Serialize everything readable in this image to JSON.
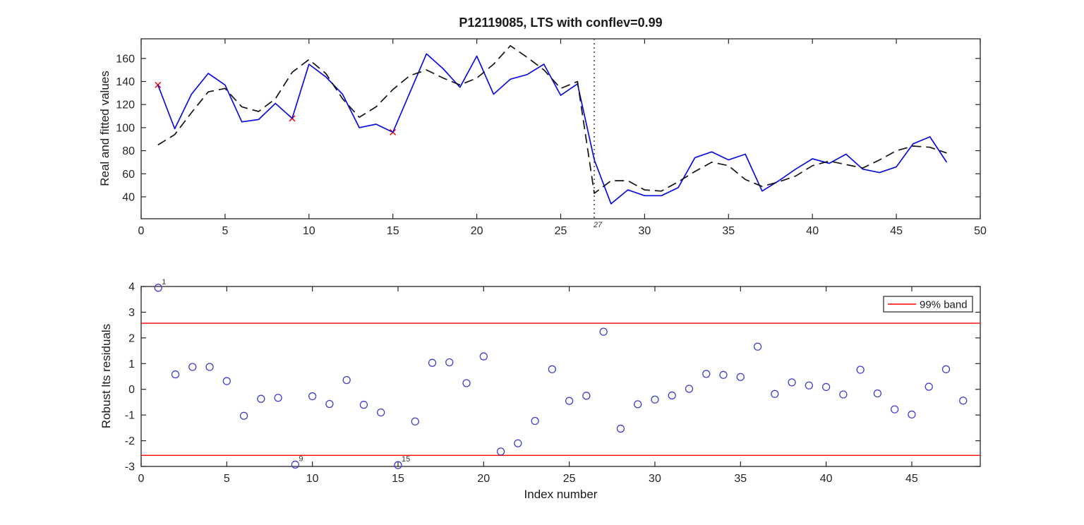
{
  "figure": {
    "background": "#ffffff",
    "spine_color": "#262626",
    "title": "P12119085, LTS with conflev=0.99"
  },
  "chart_data": [
    {
      "type": "line",
      "title": "P12119085, LTS with conflev=0.99",
      "xlabel": "",
      "ylabel": "Real and fitted values",
      "xlim": [
        0,
        50
      ],
      "ylim": [
        21,
        177
      ],
      "xticks": [
        0,
        5,
        10,
        15,
        20,
        25,
        30,
        35,
        40,
        45,
        50
      ],
      "yticks": [
        40,
        60,
        80,
        100,
        120,
        140,
        160
      ],
      "grid": false,
      "x": [
        1,
        2,
        3,
        4,
        5,
        6,
        7,
        8,
        9,
        10,
        11,
        12,
        13,
        14,
        15,
        16,
        17,
        18,
        19,
        20,
        21,
        22,
        23,
        24,
        25,
        26,
        27,
        28,
        29,
        30,
        31,
        32,
        33,
        34,
        35,
        36,
        37,
        38,
        39,
        40,
        41,
        42,
        43,
        44,
        45,
        46,
        47,
        48
      ],
      "series": [
        {
          "name": "real values",
          "style": "solid",
          "color": "#0d0de0",
          "values": [
            137,
            99,
            129,
            147,
            137,
            105,
            107,
            121,
            108,
            155,
            144,
            129,
            100,
            103,
            96,
            130,
            164,
            151,
            135,
            162,
            129,
            142,
            146,
            155,
            128,
            138,
            72,
            34,
            46,
            41,
            41,
            48,
            74,
            79,
            72,
            77,
            45,
            54,
            64,
            73,
            69,
            77,
            64,
            61,
            66,
            86,
            92,
            70
          ]
        },
        {
          "name": "fitted values",
          "style": "dashed",
          "color": "#141414",
          "values": [
            85,
            94,
            113,
            131,
            134,
            118,
            114,
            125,
            148,
            159,
            147,
            125,
            109,
            118,
            133,
            145,
            150,
            143,
            137,
            143,
            155,
            171,
            161,
            150,
            134,
            140,
            43,
            54,
            54,
            46,
            45,
            53,
            62,
            70,
            67,
            55,
            49,
            53,
            58,
            67,
            71,
            68,
            65,
            72,
            80,
            84,
            83,
            78
          ]
        }
      ],
      "outlier_x": [
        1,
        9,
        15
      ],
      "outlier_marker": "x",
      "outlier_color": "#ff0000",
      "vline_x": 27,
      "vline_label": "27",
      "vline_color": "#4d4d4d"
    },
    {
      "type": "scatter",
      "xlabel": "Index number",
      "ylabel": "Robust lts residuals",
      "xlim": [
        0,
        49
      ],
      "ylim": [
        -3,
        4
      ],
      "xticks": [
        0,
        5,
        10,
        15,
        20,
        25,
        30,
        35,
        40,
        45
      ],
      "yticks": [
        -3,
        -2,
        -1,
        0,
        1,
        2,
        3,
        4
      ],
      "grid": false,
      "x": [
        1,
        2,
        3,
        4,
        5,
        6,
        7,
        8,
        9,
        10,
        11,
        12,
        13,
        14,
        15,
        16,
        17,
        18,
        19,
        20,
        21,
        22,
        23,
        24,
        25,
        26,
        27,
        28,
        29,
        30,
        31,
        32,
        33,
        34,
        35,
        36,
        37,
        38,
        39,
        40,
        41,
        42,
        43,
        44,
        45,
        46,
        47,
        48
      ],
      "values": [
        3.95,
        0.58,
        0.87,
        0.87,
        0.32,
        -1.03,
        -0.37,
        -0.33,
        -2.93,
        -0.27,
        -0.57,
        0.36,
        -0.6,
        -0.9,
        -2.95,
        -1.25,
        1.03,
        1.05,
        0.24,
        1.28,
        -2.42,
        -2.1,
        -1.23,
        0.78,
        -0.45,
        -0.25,
        2.24,
        -1.53,
        -0.58,
        -0.4,
        -0.24,
        0.02,
        0.6,
        0.56,
        0.48,
        1.66,
        -0.18,
        0.27,
        0.15,
        0.09,
        -0.2,
        0.76,
        -0.16,
        -0.78,
        -0.98,
        0.1,
        0.78,
        -0.44
      ],
      "marker": "o",
      "marker_color": "#4040cc",
      "labeled_points": [
        1,
        9,
        15
      ],
      "point_label_texts": [
        "1",
        "9",
        "15"
      ],
      "bands": [
        2.57,
        -2.57
      ],
      "band_color": "#ff0000",
      "legend_label": "99% band",
      "legend_position": "top-right"
    }
  ]
}
